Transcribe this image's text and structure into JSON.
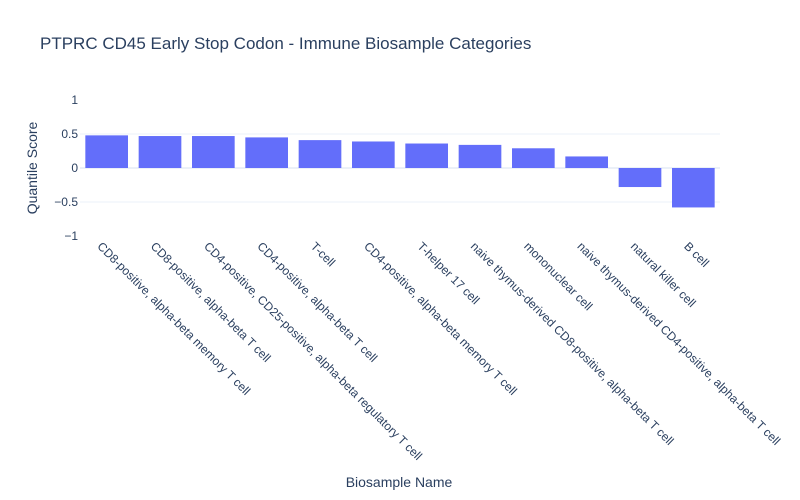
{
  "chart_data": {
    "type": "bar",
    "title": "PTPRC CD45 Early Stop Codon - Immune Biosample Categories",
    "xlabel": "Biosample Name",
    "ylabel": "Quantile Score",
    "ylim": [
      -1,
      1
    ],
    "yticks": [
      1,
      0.5,
      0,
      -0.5,
      -1
    ],
    "ytick_labels": [
      "1",
      "0.5",
      "0",
      "−0.5",
      "−1"
    ],
    "grid": true,
    "bar_color": "#636efa",
    "categories": [
      "CD8-positive, alpha-beta memory T cell",
      "CD8-positive, alpha-beta T cell",
      "CD4-positive, CD25-positive, alpha-beta regulatory T cell",
      "CD4-positive, alpha-beta T cell",
      "T-cell",
      "CD4-positive, alpha-beta memory T cell",
      "T-helper 17 cell",
      "naive thymus-derived CD8-positive, alpha-beta T cell",
      "mononuclear cell",
      "naive thymus-derived CD4-positive, alpha-beta T cell",
      "natural killer cell",
      "B cell"
    ],
    "values": [
      0.48,
      0.47,
      0.47,
      0.45,
      0.41,
      0.39,
      0.36,
      0.34,
      0.29,
      0.17,
      -0.28,
      -0.58
    ]
  }
}
